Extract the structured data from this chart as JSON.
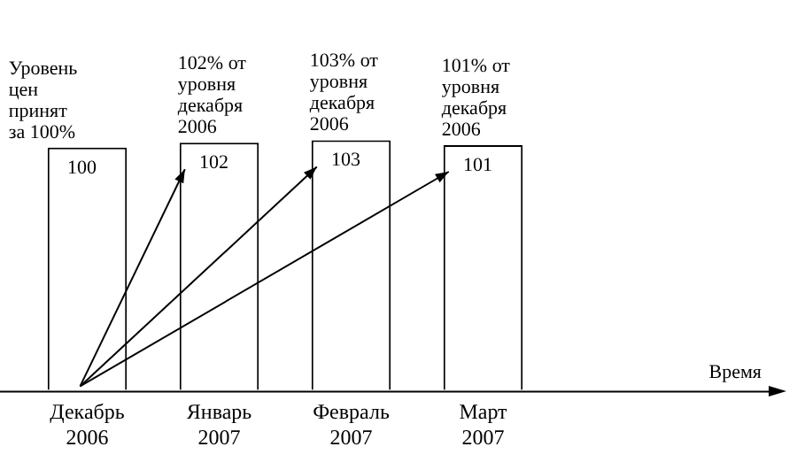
{
  "chart_data": {
    "type": "bar",
    "categories": [
      "Декабрь 2006",
      "Январь 2007",
      "Февраль 2007",
      "Март 2007"
    ],
    "values": [
      100,
      102,
      103,
      101
    ],
    "color": "#ffffff",
    "data_labels": true,
    "grid": false,
    "legend": false,
    "tick_labels": "x",
    "annotations": [
      "Уровень цен принят за 100%",
      "102% от уровня декабря 2006",
      "103% от уровня декабря 2006",
      "101% от уровня декабря 2006",
      "Время"
    ]
  }
}
